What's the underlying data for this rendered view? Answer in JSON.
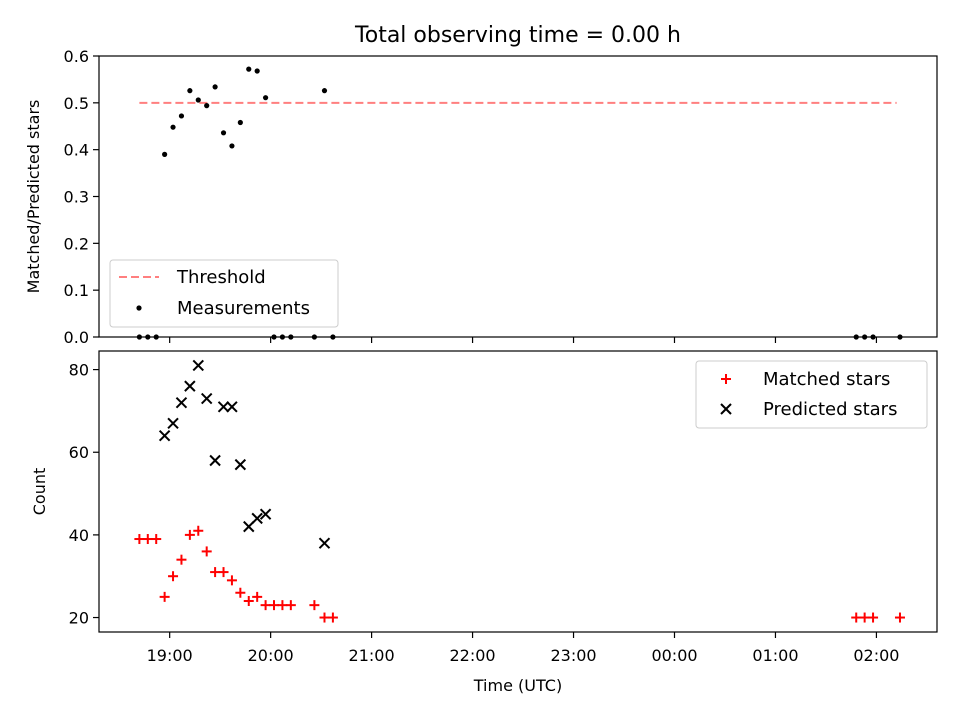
{
  "figure": {
    "title": "Total observing time = 0.00 h"
  },
  "chart_data": [
    {
      "type": "scatter",
      "ylabel": "Matched/Predicted stars",
      "ylim": [
        0,
        0.6
      ],
      "yticks": [
        0.0,
        0.1,
        0.2,
        0.3,
        0.4,
        0.5,
        0.6
      ],
      "ytick_labels": [
        "0.0",
        "0.1",
        "0.2",
        "0.3",
        "0.4",
        "0.5",
        "0.6"
      ],
      "xlim_hours": [
        18.3,
        26.6
      ],
      "xtick_labels_shown": false,
      "threshold": {
        "name": "Threshold",
        "y": 0.5,
        "x_range": [
          18.7,
          26.2
        ],
        "color": "#ff7f7f"
      },
      "series": [
        {
          "name": "Measurements",
          "color": "#000000",
          "points": [
            {
              "x": "18:42",
              "y": 0.0
            },
            {
              "x": "18:47",
              "y": 0.0
            },
            {
              "x": "18:52",
              "y": 0.0
            },
            {
              "x": "18:57",
              "y": 0.39
            },
            {
              "x": "19:02",
              "y": 0.448
            },
            {
              "x": "19:07",
              "y": 0.472
            },
            {
              "x": "19:12",
              "y": 0.526
            },
            {
              "x": "19:17",
              "y": 0.506
            },
            {
              "x": "19:22",
              "y": 0.494
            },
            {
              "x": "19:27",
              "y": 0.534
            },
            {
              "x": "19:32",
              "y": 0.436
            },
            {
              "x": "19:37",
              "y": 0.408
            },
            {
              "x": "19:42",
              "y": 0.458
            },
            {
              "x": "19:47",
              "y": 0.572
            },
            {
              "x": "19:52",
              "y": 0.568
            },
            {
              "x": "19:57",
              "y": 0.511
            },
            {
              "x": "20:02",
              "y": 0.0
            },
            {
              "x": "20:07",
              "y": 0.0
            },
            {
              "x": "20:12",
              "y": 0.0
            },
            {
              "x": "20:26",
              "y": 0.0
            },
            {
              "x": "20:32",
              "y": 0.526
            },
            {
              "x": "20:37",
              "y": 0.0
            },
            {
              "x": "01:48",
              "y": 0.0
            },
            {
              "x": "01:53",
              "y": 0.0
            },
            {
              "x": "01:58",
              "y": 0.0
            },
            {
              "x": "02:14",
              "y": 0.0
            }
          ]
        }
      ],
      "legend": {
        "placement": "lower-left"
      }
    },
    {
      "type": "scatter",
      "xlabel": "Time (UTC)",
      "ylabel": "Count",
      "ylim": [
        16.5,
        84.5
      ],
      "yticks": [
        20,
        40,
        60,
        80
      ],
      "ytick_labels": [
        "20",
        "40",
        "60",
        "80"
      ],
      "xlim_hours": [
        18.3,
        26.6
      ],
      "xticks": [
        "19:00",
        "20:00",
        "21:00",
        "22:00",
        "23:00",
        "00:00",
        "01:00",
        "02:00"
      ],
      "series": [
        {
          "name": "Matched stars",
          "marker": "plus",
          "color": "#ff0000",
          "points": [
            {
              "x": "18:42",
              "y": 39
            },
            {
              "x": "18:47",
              "y": 39
            },
            {
              "x": "18:52",
              "y": 39
            },
            {
              "x": "18:57",
              "y": 25
            },
            {
              "x": "19:02",
              "y": 30
            },
            {
              "x": "19:07",
              "y": 34
            },
            {
              "x": "19:12",
              "y": 40
            },
            {
              "x": "19:17",
              "y": 41
            },
            {
              "x": "19:22",
              "y": 36
            },
            {
              "x": "19:27",
              "y": 31
            },
            {
              "x": "19:32",
              "y": 31
            },
            {
              "x": "19:37",
              "y": 29
            },
            {
              "x": "19:42",
              "y": 26
            },
            {
              "x": "19:47",
              "y": 24
            },
            {
              "x": "19:52",
              "y": 25
            },
            {
              "x": "19:57",
              "y": 23
            },
            {
              "x": "20:02",
              "y": 23
            },
            {
              "x": "20:07",
              "y": 23
            },
            {
              "x": "20:12",
              "y": 23
            },
            {
              "x": "20:26",
              "y": 23
            },
            {
              "x": "20:32",
              "y": 20
            },
            {
              "x": "20:37",
              "y": 20
            },
            {
              "x": "01:48",
              "y": 20
            },
            {
              "x": "01:53",
              "y": 20
            },
            {
              "x": "01:58",
              "y": 20
            },
            {
              "x": "02:14",
              "y": 20
            }
          ]
        },
        {
          "name": "Predicted stars",
          "marker": "x",
          "color": "#000000",
          "points": [
            {
              "x": "18:57",
              "y": 64
            },
            {
              "x": "19:02",
              "y": 67
            },
            {
              "x": "19:07",
              "y": 72
            },
            {
              "x": "19:12",
              "y": 76
            },
            {
              "x": "19:17",
              "y": 81
            },
            {
              "x": "19:22",
              "y": 73
            },
            {
              "x": "19:27",
              "y": 58
            },
            {
              "x": "19:32",
              "y": 71
            },
            {
              "x": "19:37",
              "y": 71
            },
            {
              "x": "19:42",
              "y": 57
            },
            {
              "x": "19:47",
              "y": 42
            },
            {
              "x": "19:52",
              "y": 44
            },
            {
              "x": "19:57",
              "y": 45
            },
            {
              "x": "20:32",
              "y": 38
            }
          ]
        }
      ],
      "legend": {
        "placement": "upper-right"
      }
    }
  ]
}
